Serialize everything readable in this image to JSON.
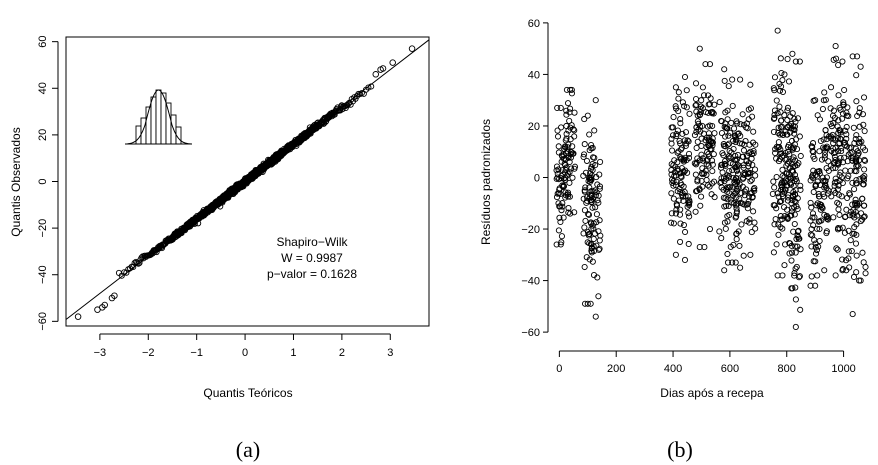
{
  "chart_data": [
    {
      "type": "scatter",
      "subplot": "qq-plot",
      "xlabel": "Quantis Teóricos",
      "ylabel": "Quantis Observados",
      "xlim": [
        -3.7,
        3.8
      ],
      "ylim": [
        -62,
        62
      ],
      "xticks": [
        -3,
        -2,
        -1,
        0,
        1,
        2,
        3
      ],
      "xtick_labels": [
        "−3",
        "−2",
        "−1",
        "0",
        "1",
        "2",
        "3"
      ],
      "yticks": [
        -60,
        -40,
        -20,
        0,
        20,
        40,
        60
      ],
      "ytick_labels": [
        "−60",
        "−40",
        "−20",
        "0",
        "20",
        "40",
        "60"
      ],
      "box": true,
      "reference_line": {
        "intercept": 0,
        "slope": 16
      },
      "annotation": [
        "Shapiro−Wilk",
        "W = 0.9987",
        "p−valor = 0.1628"
      ],
      "n_points": 1200,
      "tail_points": [
        {
          "x": -3.45,
          "y": -58
        },
        {
          "x": -3.05,
          "y": -55
        },
        {
          "x": -2.95,
          "y": -54
        },
        {
          "x": -2.9,
          "y": -53
        },
        {
          "x": -2.75,
          "y": -50
        },
        {
          "x": -2.7,
          "y": -49
        },
        {
          "x": 2.7,
          "y": 46
        },
        {
          "x": 2.8,
          "y": 48
        },
        {
          "x": 2.85,
          "y": 48.5
        },
        {
          "x": 3.05,
          "y": 51
        },
        {
          "x": 3.45,
          "y": 57
        }
      ]
    },
    {
      "type": "scatter",
      "subplot": "residuals-vs-days",
      "xlabel": "Dias após a recepa",
      "ylabel": "Resíduos padronizados",
      "xlim": [
        -40,
        1100
      ],
      "ylim": [
        -65,
        65
      ],
      "xticks": [
        0,
        200,
        400,
        600,
        800,
        1000
      ],
      "xtick_labels": [
        "0",
        "200",
        "400",
        "600",
        "800",
        "1000"
      ],
      "yticks": [
        -60,
        -40,
        -20,
        0,
        20,
        40,
        60
      ],
      "ytick_labels": [
        "−60",
        "−40",
        "−20",
        "0",
        "20",
        "40",
        "60"
      ],
      "box": false,
      "groups": [
        {
          "day": 5,
          "min": -26,
          "max": 27
        },
        {
          "day": 38,
          "min": -14,
          "max": 34
        },
        {
          "day": 100,
          "min": -49,
          "max": 24
        },
        {
          "day": 128,
          "min": -54,
          "max": 30
        },
        {
          "day": 410,
          "min": -30,
          "max": 35
        },
        {
          "day": 442,
          "min": -32,
          "max": 39
        },
        {
          "day": 494,
          "min": -27,
          "max": 50
        },
        {
          "day": 530,
          "min": -20,
          "max": 44
        },
        {
          "day": 580,
          "min": -36,
          "max": 42
        },
        {
          "day": 608,
          "min": -33,
          "max": 38
        },
        {
          "day": 636,
          "min": -35,
          "max": 38
        },
        {
          "day": 672,
          "min": -30,
          "max": 36
        },
        {
          "day": 768,
          "min": -38,
          "max": 57
        },
        {
          "day": 792,
          "min": -34,
          "max": 40
        },
        {
          "day": 820,
          "min": -43,
          "max": 48
        },
        {
          "day": 832,
          "min": -58,
          "max": 45
        },
        {
          "day": 900,
          "min": -42,
          "max": 30
        },
        {
          "day": 932,
          "min": -36,
          "max": 33
        },
        {
          "day": 972,
          "min": -38,
          "max": 51
        },
        {
          "day": 996,
          "min": -36,
          "max": 45
        },
        {
          "day": 1032,
          "min": -53,
          "max": 47
        },
        {
          "day": 1060,
          "min": -40,
          "max": 43
        }
      ]
    }
  ],
  "captions": {
    "left": "(a)",
    "right": "(b)"
  }
}
